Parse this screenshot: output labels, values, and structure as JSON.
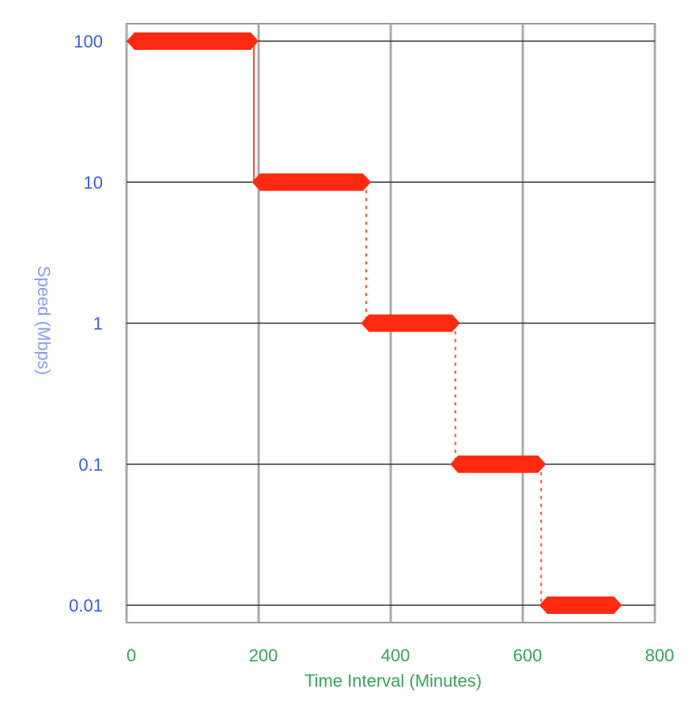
{
  "chart_data": {
    "type": "line",
    "title": "",
    "xlabel": "Time Interval (Minutes)",
    "ylabel": "Speed (Mbps)",
    "x_ticks": [
      "0",
      "200",
      "400",
      "600",
      "800"
    ],
    "y_ticks": [
      "100",
      "10",
      "1",
      "0.1",
      "0.01"
    ],
    "y_scale": "log",
    "xlim": [
      0,
      800
    ],
    "ylim": [
      0.01,
      100
    ],
    "grid": true,
    "series": [
      {
        "color": "#ff2a10",
        "segments": [
          {
            "x_start": 0,
            "x_end": 200,
            "y": 100
          },
          {
            "x_start": 190,
            "x_end": 370,
            "y": 10
          },
          {
            "x_start": 355,
            "x_end": 505,
            "y": 1
          },
          {
            "x_start": 490,
            "x_end": 635,
            "y": 0.1
          },
          {
            "x_start": 625,
            "x_end": 750,
            "y": 0.01
          }
        ]
      }
    ]
  }
}
